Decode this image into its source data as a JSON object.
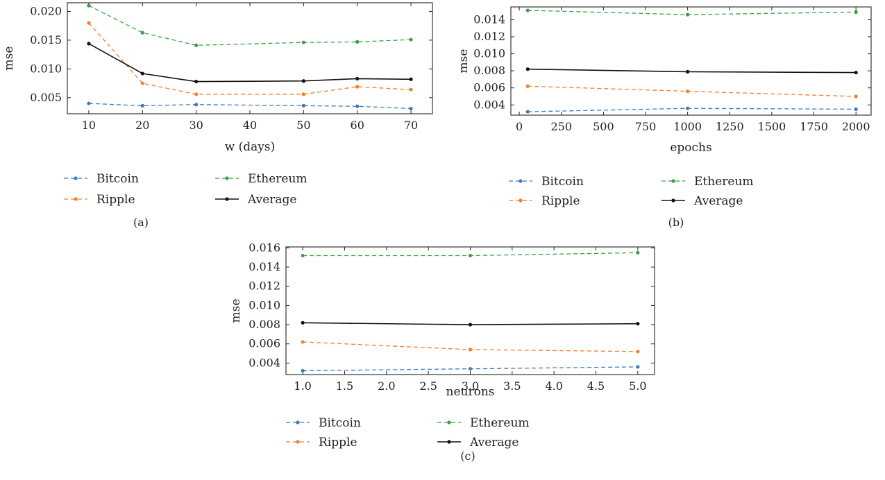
{
  "colors": {
    "Bitcoin": "#3a7bbf",
    "Ripple": "#f07f2a",
    "Ethereum": "#3aa040",
    "Average": "#111111"
  },
  "chart_data": [
    {
      "type": "line",
      "caption": "(a)",
      "xlabel": "w (days)",
      "ylabel": "mse",
      "xlim": [
        6,
        74
      ],
      "ylim": [
        0.0022,
        0.0215
      ],
      "xticks": [
        10,
        20,
        30,
        40,
        50,
        60,
        70
      ],
      "xtick_labels": [
        "10",
        "20",
        "30",
        "40",
        "50",
        "60",
        "70"
      ],
      "yticks": [
        0.005,
        0.01,
        0.015,
        0.02
      ],
      "ytick_labels": [
        "0.005",
        "0.010",
        "0.015",
        "0.020"
      ],
      "x": [
        10,
        20,
        30,
        50,
        60,
        70
      ],
      "series": [
        {
          "name": "Bitcoin",
          "values": [
            0.004,
            0.0036,
            0.0038,
            0.0036,
            0.0035,
            0.0031
          ],
          "style": "dashed"
        },
        {
          "name": "Ripple",
          "values": [
            0.018,
            0.0075,
            0.0056,
            0.0056,
            0.0069,
            0.0064
          ],
          "style": "dashed"
        },
        {
          "name": "Ethereum",
          "values": [
            0.021,
            0.0163,
            0.0141,
            0.0146,
            0.0147,
            0.0151
          ],
          "style": "dashed"
        },
        {
          "name": "Average",
          "values": [
            0.0144,
            0.0092,
            0.0078,
            0.0079,
            0.0083,
            0.0082
          ],
          "style": "solid"
        }
      ],
      "legend": [
        "Bitcoin",
        "Ethereum",
        "Ripple",
        "Average"
      ],
      "legend_placement": "below",
      "grid": false
    },
    {
      "type": "line",
      "caption": "(b)",
      "xlabel": "epochs",
      "ylabel": "mse",
      "xlim": [
        -50,
        2090
      ],
      "ylim": [
        0.0028,
        0.0155
      ],
      "xticks": [
        0,
        250,
        500,
        750,
        1000,
        1250,
        1500,
        1750,
        2000
      ],
      "xtick_labels": [
        "0",
        "250",
        "500",
        "750",
        "1000",
        "1250",
        "1500",
        "1750",
        "2000"
      ],
      "yticks": [
        0.004,
        0.006,
        0.008,
        0.01,
        0.012,
        0.014
      ],
      "ytick_labels": [
        "0.004",
        "0.006",
        "0.008",
        "0.010",
        "0.012",
        "0.014"
      ],
      "x": [
        50,
        1000,
        2000
      ],
      "series": [
        {
          "name": "Bitcoin",
          "values": [
            0.0032,
            0.0036,
            0.0035
          ],
          "style": "dashed"
        },
        {
          "name": "Ripple",
          "values": [
            0.0062,
            0.0056,
            0.005
          ],
          "style": "dashed"
        },
        {
          "name": "Ethereum",
          "values": [
            0.0151,
            0.0146,
            0.0149
          ],
          "style": "dashed"
        },
        {
          "name": "Average",
          "values": [
            0.0082,
            0.0079,
            0.0078
          ],
          "style": "solid"
        }
      ],
      "legend": [
        "Bitcoin",
        "Ethereum",
        "Ripple",
        "Average"
      ],
      "legend_placement": "below",
      "grid": false
    },
    {
      "type": "line",
      "caption": "(c)",
      "xlabel": "neurons",
      "ylabel": "mse",
      "xlim": [
        0.8,
        5.2
      ],
      "ylim": [
        0.0028,
        0.0161
      ],
      "xticks": [
        1.0,
        1.5,
        2.0,
        2.5,
        3.0,
        3.5,
        4.0,
        4.5,
        5.0
      ],
      "xtick_labels": [
        "1.0",
        "1.5",
        "2.0",
        "2.5",
        "3.0",
        "3.5",
        "4.0",
        "4.5",
        "5.0"
      ],
      "yticks": [
        0.004,
        0.006,
        0.008,
        0.01,
        0.012,
        0.014,
        0.016
      ],
      "ytick_labels": [
        "0.004",
        "0.006",
        "0.008",
        "0.010",
        "0.012",
        "0.014",
        "0.016"
      ],
      "x": [
        1,
        3,
        5
      ],
      "series": [
        {
          "name": "Bitcoin",
          "values": [
            0.0032,
            0.0034,
            0.0036
          ],
          "style": "dashed"
        },
        {
          "name": "Ripple",
          "values": [
            0.0062,
            0.0054,
            0.0052
          ],
          "style": "dashed"
        },
        {
          "name": "Ethereum",
          "values": [
            0.0152,
            0.0152,
            0.0155
          ],
          "style": "dashed"
        },
        {
          "name": "Average",
          "values": [
            0.0082,
            0.008,
            0.0081
          ],
          "style": "solid"
        }
      ],
      "legend": [
        "Bitcoin",
        "Ethereum",
        "Ripple",
        "Average"
      ],
      "legend_placement": "below",
      "grid": false
    }
  ]
}
